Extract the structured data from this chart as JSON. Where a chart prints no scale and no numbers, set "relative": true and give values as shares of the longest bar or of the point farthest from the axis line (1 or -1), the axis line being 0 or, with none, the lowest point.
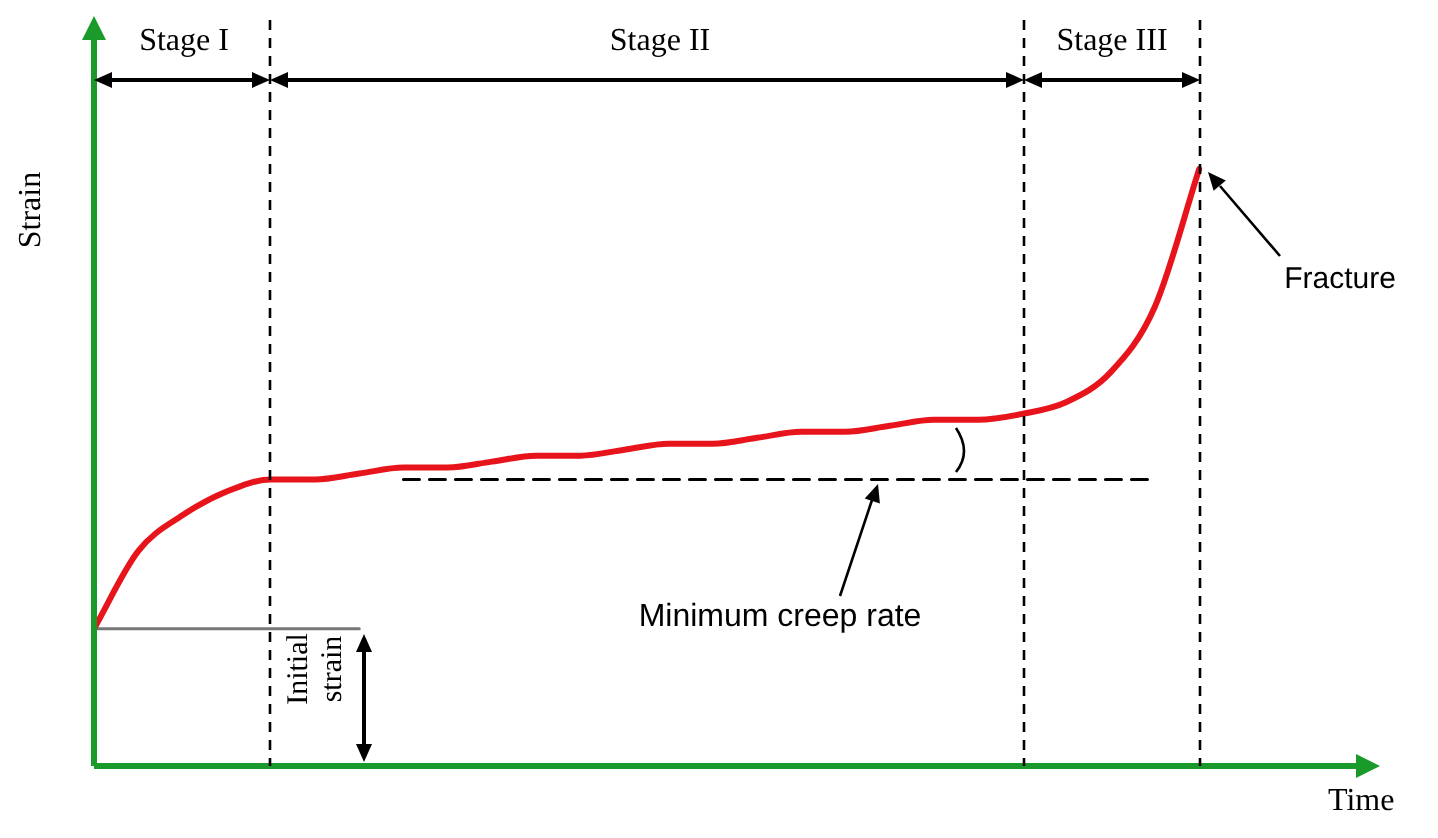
{
  "chart_data": {
    "type": "line",
    "relative": true,
    "xlabel": "Time",
    "ylabel": "Strain",
    "categories": [
      null,
      null,
      null,
      null,
      null,
      null,
      null,
      null,
      null,
      null,
      null,
      null,
      null,
      null,
      null,
      null,
      null,
      null,
      null,
      null,
      null,
      null,
      null,
      null,
      null,
      null,
      null,
      null,
      null,
      null
    ],
    "series": [
      {
        "color": "#e8141b",
        "values": [
          0.23,
          0.36,
          0.42,
          0.46,
          0.48,
          0.48,
          0.49,
          0.5,
          0.5,
          0.51,
          0.52,
          0.52,
          0.53,
          0.54,
          0.54,
          0.55,
          0.56,
          0.56,
          0.57,
          0.58,
          0.58,
          0.59,
          0.61,
          0.66,
          0.77,
          1,
          null,
          null,
          null,
          null
        ]
      },
      {
        "color": "#000000",
        "line_style": "dashed",
        "values": [
          null,
          null,
          null,
          null,
          null,
          null,
          null,
          0.48,
          0.48,
          0.48,
          0.48,
          0.48,
          0.48,
          0.48,
          0.48,
          0.48,
          0.48,
          0.48,
          0.48,
          0.48,
          0.48,
          0.48,
          0.48,
          0.48,
          0.48,
          null,
          null,
          null,
          null,
          null
        ]
      },
      {
        "color": "#777777",
        "values": [
          0.23,
          0.23,
          0.23,
          0.23,
          0.23,
          0.23,
          0.23,
          null,
          null,
          null,
          null,
          null,
          null,
          null,
          null,
          null,
          null,
          null,
          null,
          null,
          null,
          null,
          null,
          null,
          null,
          null,
          null,
          null,
          null,
          null
        ]
      }
    ],
    "annotations": [
      "Stage I",
      "Stage II",
      "Stage III",
      "Fracture",
      "Minimum creep rate",
      "Initial strain"
    ],
    "marker": "none",
    "line_style": "solid",
    "legend": false
  }
}
